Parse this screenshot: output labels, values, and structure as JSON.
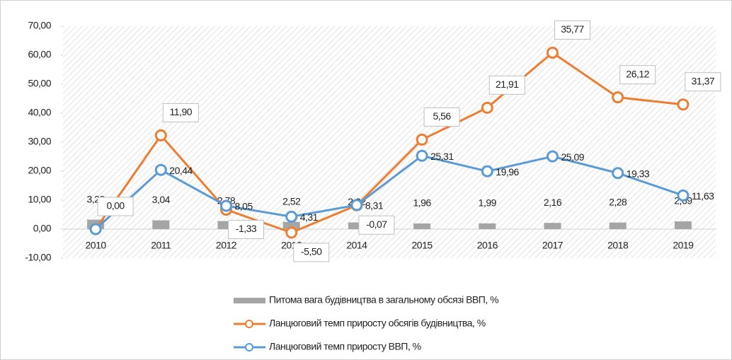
{
  "chart_data": {
    "type": "combo",
    "categories": [
      "2010",
      "2011",
      "2012",
      "2013",
      "2014",
      "2015",
      "2016",
      "2017",
      "2018",
      "2019"
    ],
    "series": [
      {
        "name": "Питома вага будівництва в загальному обсязі ВВП, %",
        "type": "bar",
        "color": "#a5a5a5",
        "values": [
          3.28,
          3.04,
          2.78,
          2.52,
          2.32,
          1.96,
          1.99,
          2.16,
          2.28,
          2.69
        ],
        "value_labels": [
          "3,28",
          "3,04",
          "2,78",
          "2,52",
          "2,32",
          "1,96",
          "1,99",
          "2,16",
          "2,28",
          "2,69"
        ]
      },
      {
        "name": "Ланцюговий темп приросту обсягів будівництва, %",
        "type": "line",
        "color": "#ed7d31",
        "values": [
          0.0,
          11.9,
          -1.33,
          -5.5,
          -0.07,
          5.56,
          21.91,
          35.77,
          26.12,
          31.37
        ],
        "value_labels": [
          "0,00",
          "11,90",
          "-1,33",
          "-5,50",
          "-0,07",
          "5,56",
          "21,91",
          "35,77",
          "26,12",
          "31,37"
        ]
      },
      {
        "name": "Ланцюговий темп приросту ВВП, %",
        "type": "line",
        "color": "#5b9bd5",
        "values": [
          0.0,
          20.44,
          8.05,
          4.31,
          8.31,
          25.31,
          19.96,
          25.09,
          19.33,
          11.63
        ],
        "value_labels": [
          null,
          "20,44",
          "8,05",
          "4,31",
          "8,31",
          "25,31",
          "19,96",
          "25,09",
          "19,33",
          "11,63"
        ]
      }
    ],
    "stacked_lines": true,
    "ylim": [
      -10,
      70
    ],
    "yticks": [
      {
        "value": -10,
        "label": "-10,00"
      },
      {
        "value": 0,
        "label": "0,00"
      },
      {
        "value": 10,
        "label": "10,00"
      },
      {
        "value": 20,
        "label": "20,00"
      },
      {
        "value": 30,
        "label": "30,00"
      },
      {
        "value": 40,
        "label": "40,00"
      },
      {
        "value": 50,
        "label": "50,00"
      },
      {
        "value": 60,
        "label": "60,00"
      },
      {
        "value": 70,
        "label": "70,00"
      }
    ],
    "legend": "bottom"
  }
}
